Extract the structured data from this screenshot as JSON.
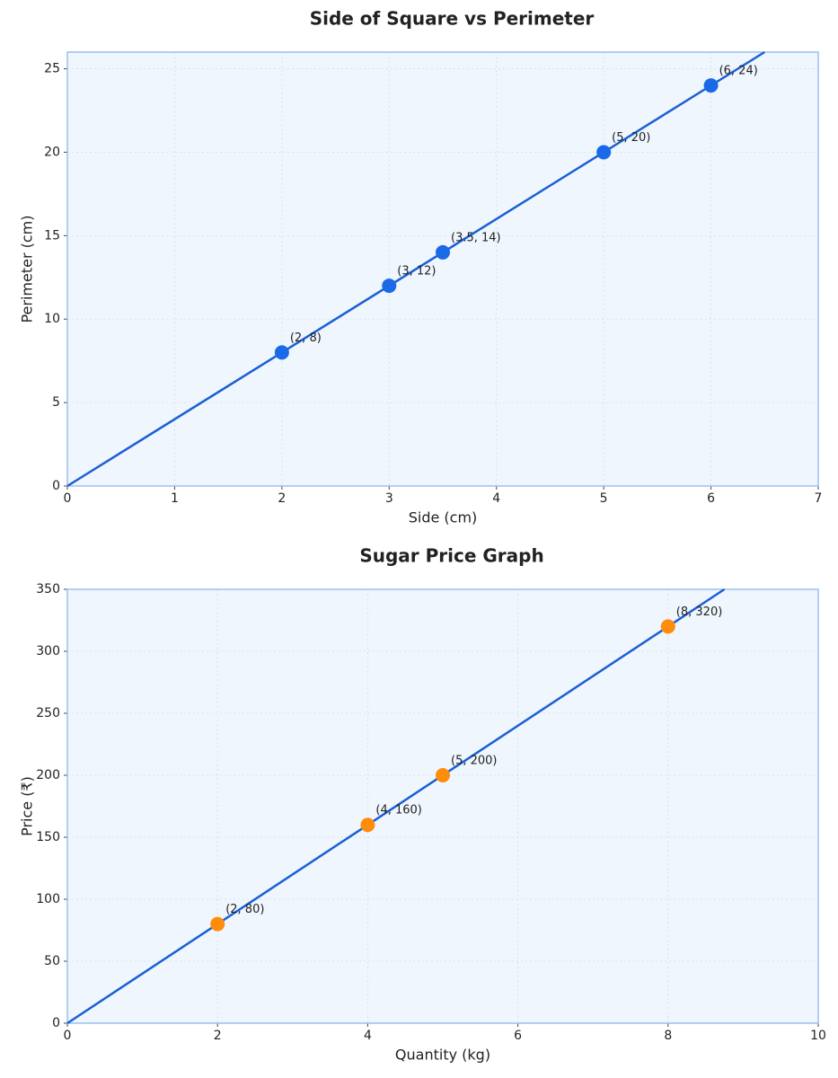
{
  "chart_data": [
    {
      "type": "scatter",
      "title": "Side of Square vs Perimeter",
      "x_label": "Side (cm)",
      "y_label": "Perimeter (cm)",
      "xlim": [
        0,
        7
      ],
      "ylim": [
        0,
        26
      ],
      "xticks": [
        0,
        1,
        2,
        3,
        4,
        5,
        6,
        7
      ],
      "yticks": [
        0,
        5,
        10,
        15,
        20,
        25
      ],
      "grid": true,
      "line": {
        "color": "#1a5fd6",
        "x": [
          0,
          6.5
        ],
        "values": [
          0,
          26
        ]
      },
      "series": [
        {
          "color": "#1a6ae8",
          "x": [
            2,
            3,
            3.5,
            5,
            6
          ],
          "values": [
            8,
            12,
            14,
            20,
            24
          ],
          "value_labels": [
            "(2, 8)",
            "(3, 12)",
            "(3.5, 14)",
            "(5, 20)",
            "(6, 24)"
          ]
        }
      ]
    },
    {
      "type": "scatter",
      "title": "Sugar Price Graph",
      "x_label": "Quantity (kg)",
      "y_label": "Price (₹)",
      "xlim": [
        0,
        10
      ],
      "ylim": [
        0,
        350
      ],
      "xticks": [
        0,
        2,
        4,
        6,
        8,
        10
      ],
      "yticks": [
        0,
        50,
        100,
        150,
        200,
        250,
        300,
        350
      ],
      "grid": true,
      "line": {
        "color": "#1a5fd6",
        "x": [
          0,
          8.75
        ],
        "values": [
          0,
          350
        ]
      },
      "series": [
        {
          "color": "#ff8c0a",
          "x": [
            2,
            4,
            5,
            8
          ],
          "values": [
            80,
            160,
            200,
            320
          ],
          "value_labels": [
            "(2, 80)",
            "(4, 160)",
            "(5, 200)",
            "(8, 320)"
          ]
        }
      ]
    }
  ]
}
